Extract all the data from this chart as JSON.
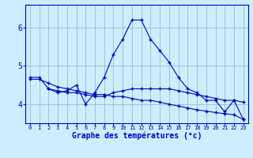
{
  "line1_x": [
    0,
    1,
    2,
    3,
    4,
    5,
    6,
    7,
    8,
    9,
    10,
    11,
    12,
    13,
    14,
    15,
    16,
    17,
    18,
    19,
    20,
    21,
    22,
    23
  ],
  "line1_y": [
    4.7,
    4.7,
    4.4,
    4.3,
    4.35,
    4.5,
    4.0,
    4.3,
    4.7,
    5.3,
    5.7,
    6.2,
    6.2,
    5.7,
    5.4,
    5.1,
    4.7,
    4.4,
    4.3,
    4.1,
    4.1,
    3.8,
    4.1,
    3.6
  ],
  "line2_x": [
    2,
    3,
    4,
    5,
    6,
    7,
    8,
    9,
    10,
    11,
    12,
    13,
    14,
    15,
    16,
    17,
    18,
    19,
    20,
    21,
    22,
    23
  ],
  "line2_y": [
    4.4,
    4.35,
    4.3,
    4.3,
    4.25,
    4.2,
    4.2,
    4.3,
    4.35,
    4.4,
    4.4,
    4.4,
    4.4,
    4.4,
    4.35,
    4.3,
    4.25,
    4.2,
    4.15,
    4.1,
    4.1,
    4.05
  ],
  "line3_x": [
    0,
    1,
    2,
    3,
    4,
    5,
    6,
    7,
    8,
    9,
    10,
    11,
    12,
    13,
    14,
    15,
    16,
    17,
    18,
    19,
    20,
    21,
    22,
    23
  ],
  "line3_y": [
    4.65,
    4.65,
    4.55,
    4.45,
    4.4,
    4.35,
    4.3,
    4.25,
    4.25,
    4.2,
    4.2,
    4.15,
    4.1,
    4.1,
    4.05,
    4.0,
    3.95,
    3.9,
    3.85,
    3.82,
    3.78,
    3.75,
    3.72,
    3.6
  ],
  "line_color": "#0000bb",
  "bg_color": "#cceeff",
  "grid_color": "#99bbcc",
  "xlabel": "Graphe des températures (°c)",
  "xlim": [
    -0.5,
    23.5
  ],
  "ylim": [
    3.5,
    6.6
  ],
  "yticks": [
    4,
    5,
    6
  ],
  "xticks": [
    0,
    1,
    2,
    3,
    4,
    5,
    6,
    7,
    8,
    9,
    10,
    11,
    12,
    13,
    14,
    15,
    16,
    17,
    18,
    19,
    20,
    21,
    22,
    23
  ],
  "xlabel_fontsize": 7,
  "ytick_fontsize": 7,
  "xtick_fontsize": 5
}
